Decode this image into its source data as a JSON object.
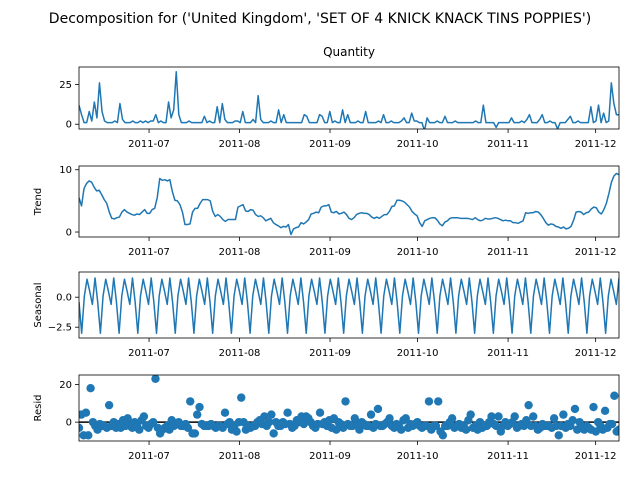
{
  "figure": {
    "suptitle": "Decomposition for ('United Kingdom', 'SET OF 4 KNICK KNACK TINS POPPIES')"
  },
  "colors": {
    "series": "#1f77b4",
    "axis": "#000000",
    "zero_line": "#000000"
  },
  "chart_data": [
    {
      "type": "line",
      "panel": "observed",
      "title": "Quantity",
      "ylabel": "",
      "x_start": "2011-06-07",
      "x_end": "2011-12-09",
      "ylim": [
        -3,
        36
      ],
      "yticks": [
        0,
        25
      ],
      "xticks": [
        "2011-07",
        "2011-08",
        "2011-09",
        "2011-10",
        "2011-11",
        "2011-12"
      ],
      "values": [
        12,
        6,
        1,
        1,
        8,
        2,
        14,
        4,
        26,
        8,
        2,
        1,
        1,
        1,
        2,
        1,
        13,
        3,
        1,
        1,
        1,
        2,
        1,
        1,
        2,
        1,
        2,
        1,
        2,
        2,
        6,
        1,
        2,
        1,
        1,
        14,
        4,
        9,
        33,
        6,
        1,
        1,
        1,
        2,
        1,
        1,
        1,
        1,
        1,
        5,
        1,
        2,
        1,
        1,
        11,
        1,
        13,
        3,
        1,
        1,
        1,
        2,
        2,
        1,
        8,
        1,
        1,
        1,
        3,
        1,
        18,
        3,
        1,
        1,
        1,
        2,
        1,
        1,
        9,
        1,
        6,
        1,
        1,
        1,
        1,
        1,
        1,
        1,
        6,
        5,
        1,
        1,
        1,
        1,
        6,
        5,
        1,
        1,
        8,
        1,
        2,
        1,
        1,
        9,
        1,
        6,
        1,
        1,
        1,
        2,
        1,
        1,
        8,
        1,
        1,
        1,
        1,
        2,
        1,
        6,
        1,
        1,
        2,
        1,
        1,
        1,
        2,
        4,
        1,
        1,
        7,
        2,
        2,
        1,
        1,
        -4,
        4,
        1,
        1,
        1,
        2,
        1,
        1,
        5,
        1,
        1,
        1,
        2,
        1,
        1,
        1,
        1,
        1,
        1,
        1,
        2,
        1,
        1,
        12,
        1,
        1,
        1,
        1,
        -2,
        1,
        1,
        1,
        1,
        1,
        4,
        1,
        1,
        1,
        2,
        1,
        3,
        6,
        1,
        1,
        1,
        3,
        6,
        1,
        1,
        2,
        1,
        1,
        -3,
        1,
        1,
        1,
        3,
        5,
        1,
        1,
        2,
        1,
        1,
        1,
        1,
        11,
        1,
        2,
        12,
        1,
        7,
        1,
        2,
        26,
        13,
        6,
        6
      ]
    },
    {
      "type": "line",
      "panel": "trend",
      "title": "",
      "ylabel": "Trend",
      "x_start": "2011-06-07",
      "x_end": "2011-12-09",
      "ylim": [
        -0.8,
        10.6
      ],
      "yticks": [
        0,
        10
      ],
      "xticks": [
        "2011-07",
        "2011-08",
        "2011-09",
        "2011-10",
        "2011-11",
        "2011-12"
      ],
      "values": [
        5.5,
        4.2,
        7,
        7.8,
        8.2,
        8,
        7.2,
        6.6,
        6.7,
        6,
        5.2,
        4.6,
        3.2,
        2.2,
        2.1,
        2.3,
        2.4,
        3.2,
        3.6,
        3.2,
        3,
        2.8,
        2.7,
        2.9,
        2.8,
        3.2,
        3.6,
        3,
        3,
        3.6,
        3.8,
        5.5,
        8.6,
        8.3,
        8.4,
        8.2,
        8.4,
        6.5,
        5.1,
        5,
        4.4,
        3.2,
        1.2,
        1.2,
        1.3,
        3.2,
        3.8,
        3.8,
        4.6,
        5.2,
        5.2,
        5.2,
        5,
        3.3,
        2.5,
        2.8,
        2.5,
        2,
        1.7,
        2,
        2,
        2,
        2,
        4,
        4.2,
        4.4,
        3.4,
        3.3,
        3.6,
        3.5,
        2.8,
        2.5,
        2.6,
        2.3,
        1.8,
        2,
        2.2,
        1.5,
        1.2,
        1,
        0.7,
        0.9,
        0.8,
        1.2,
        -0.4,
        0.5,
        0.7,
        0.8,
        1.5,
        1.3,
        1.6,
        2,
        2.9,
        3,
        3.2,
        3.1,
        4,
        4.2,
        4.2,
        4.4,
        3.2,
        3.1,
        3.3,
        2.9,
        3,
        3.2,
        2.8,
        2.2,
        2,
        2.3,
        2.8,
        3,
        3.1,
        3,
        3,
        2.8,
        2.4,
        2.2,
        2.4,
        2.2,
        2.5,
        2.8,
        2.8,
        3.3,
        4.1,
        4.2,
        5.1,
        5.1,
        5,
        4.8,
        4.4,
        4,
        3.3,
        2.9,
        2.6,
        1.5,
        0.9,
        1.8,
        2,
        2.2,
        2.3,
        2.3,
        1.9,
        1.3,
        1,
        1.6,
        1.8,
        2.2,
        2.3,
        2.3,
        2.3,
        2.2,
        2.2,
        2.2,
        2.2,
        2.1,
        2,
        2.3,
        2,
        1.8,
        1.9,
        2.2,
        2.1,
        2.1,
        2.2,
        2.3,
        2.2,
        2,
        1.8,
        1.9,
        1.8,
        1.8,
        1.5,
        1.5,
        1.4,
        1.6,
        1.8,
        3.1,
        3,
        3.1,
        3.1,
        3.3,
        3.2,
        2.8,
        2.2,
        1.5,
        1.1,
        1.3,
        1.2,
        0.9,
        0.8,
        0.6,
        0.8,
        0.5,
        0.6,
        0.9,
        1.9,
        3.2,
        3.3,
        3.2,
        2.8,
        3.1,
        3.2,
        3.7,
        4,
        3.9,
        3.2,
        2.9,
        3.6,
        4.6,
        6.2,
        8,
        9,
        9.4,
        9.2
      ]
    },
    {
      "type": "line",
      "panel": "seasonal",
      "title": "",
      "ylabel": "Seasonal",
      "x_start": "2011-06-07",
      "x_end": "2011-12-09",
      "ylim": [
        -3.4,
        2.1
      ],
      "yticks": [
        0.0,
        -2.5
      ],
      "ytick_labels": [
        "0.0",
        "−2.5"
      ],
      "xticks": [
        "2011-07",
        "2011-08",
        "2011-09",
        "2011-10",
        "2011-11",
        "2011-12"
      ],
      "period_pattern": [
        -0.4,
        -3.0,
        0.1,
        1.5,
        0.5,
        -0.6,
        1.6
      ],
      "cycles": 29
    },
    {
      "type": "scatter",
      "panel": "resid",
      "title": "",
      "ylabel": "Resid",
      "x_start": "2011-06-07",
      "x_end": "2011-12-09",
      "ylim": [
        -10,
        25
      ],
      "yticks": [
        0,
        20
      ],
      "xticks": [
        "2011-07",
        "2011-08",
        "2011-09",
        "2011-10",
        "2011-11",
        "2011-12"
      ],
      "zero_line": 0,
      "values": [
        -3,
        4,
        -7,
        5,
        -7,
        18,
        0,
        -2,
        -4,
        -1,
        -2,
        -2,
        -3,
        9,
        -2,
        0,
        -3,
        -1,
        -3,
        1,
        -2,
        2,
        -2,
        -3,
        0,
        -2,
        -4,
        1,
        3,
        -2,
        -3,
        -1,
        0,
        23,
        -3,
        -6,
        -4,
        -3,
        -2,
        -4,
        1,
        -2,
        -1,
        0,
        -2,
        -2,
        -1,
        -3,
        11,
        -6,
        -6,
        4,
        8,
        -1,
        -2,
        -2,
        -2,
        -1,
        -2,
        -3,
        -2,
        -2,
        -3,
        5,
        -1,
        0,
        -4,
        -2,
        -5,
        0,
        13,
        0,
        -4,
        -2,
        -3,
        -2,
        -2,
        0,
        1,
        -1,
        3,
        -2,
        0,
        4,
        -6,
        0,
        -2,
        -2,
        0,
        -1,
        5,
        -1,
        -3,
        -2,
        1,
        0,
        3,
        -1,
        3,
        2,
        0,
        -2,
        -3,
        -1,
        5,
        -1,
        0,
        -2,
        1,
        -3,
        2,
        -4,
        0,
        -1,
        -3,
        11,
        -1,
        -2,
        -2,
        2,
        -2,
        -4,
        0,
        -1,
        -2,
        -2,
        4,
        -3,
        -1,
        7,
        -2,
        -2,
        -1,
        0,
        2,
        -2,
        -3,
        -1,
        -2,
        -4,
        1,
        2,
        -3,
        -1,
        -2,
        -1,
        0,
        -2,
        -3,
        -2,
        -2,
        11,
        -4,
        -2,
        -2,
        11,
        -5,
        -7,
        -2,
        -2,
        0,
        2,
        -3,
        -2,
        -1,
        -3,
        -2,
        -4,
        1,
        4,
        -3,
        -2,
        -4,
        0,
        -3,
        -2,
        -2,
        0,
        3,
        -1,
        -2,
        3,
        -5,
        -2,
        0,
        -2,
        -1,
        0,
        3,
        -3,
        -2,
        -1,
        -2,
        1,
        9,
        -2,
        3,
        -2,
        -4,
        -3,
        -1,
        -2,
        -2,
        -2,
        -3,
        2,
        -2,
        -7,
        -2,
        4,
        -3,
        -1,
        -2,
        1,
        7,
        -4,
        0,
        -3,
        -4,
        -2,
        -3,
        -4,
        8,
        -5,
        0,
        -2,
        -4,
        6,
        -3,
        -1,
        -1,
        14,
        -5,
        -4
      ]
    }
  ]
}
